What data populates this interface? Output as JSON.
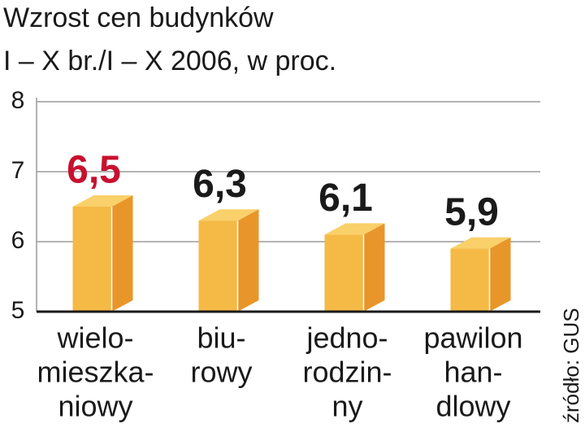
{
  "chart_data": {
    "type": "bar",
    "title": "Wzrost cen budynków",
    "subtitle": "I – X br./I – X 2006, w proc.",
    "categories": [
      [
        "wielo-",
        "mieszka-",
        "niowy"
      ],
      [
        "biu-",
        "rowy"
      ],
      [
        "jedno-",
        "rodzin-",
        "ny"
      ],
      [
        "pawilon",
        "han-",
        "dlowy"
      ]
    ],
    "values": [
      6.5,
      6.3,
      6.1,
      5.9
    ],
    "value_labels": [
      "6,5",
      "6,3",
      "6,1",
      "5,9"
    ],
    "value_label_colors": [
      "#c8102e",
      "#1a1a1a",
      "#1a1a1a",
      "#1a1a1a"
    ],
    "color": "#f5b945",
    "ylim": [
      5,
      8
    ],
    "yticks": [
      5,
      6,
      7,
      8
    ],
    "grid": true,
    "source": "źródło: GUS"
  }
}
